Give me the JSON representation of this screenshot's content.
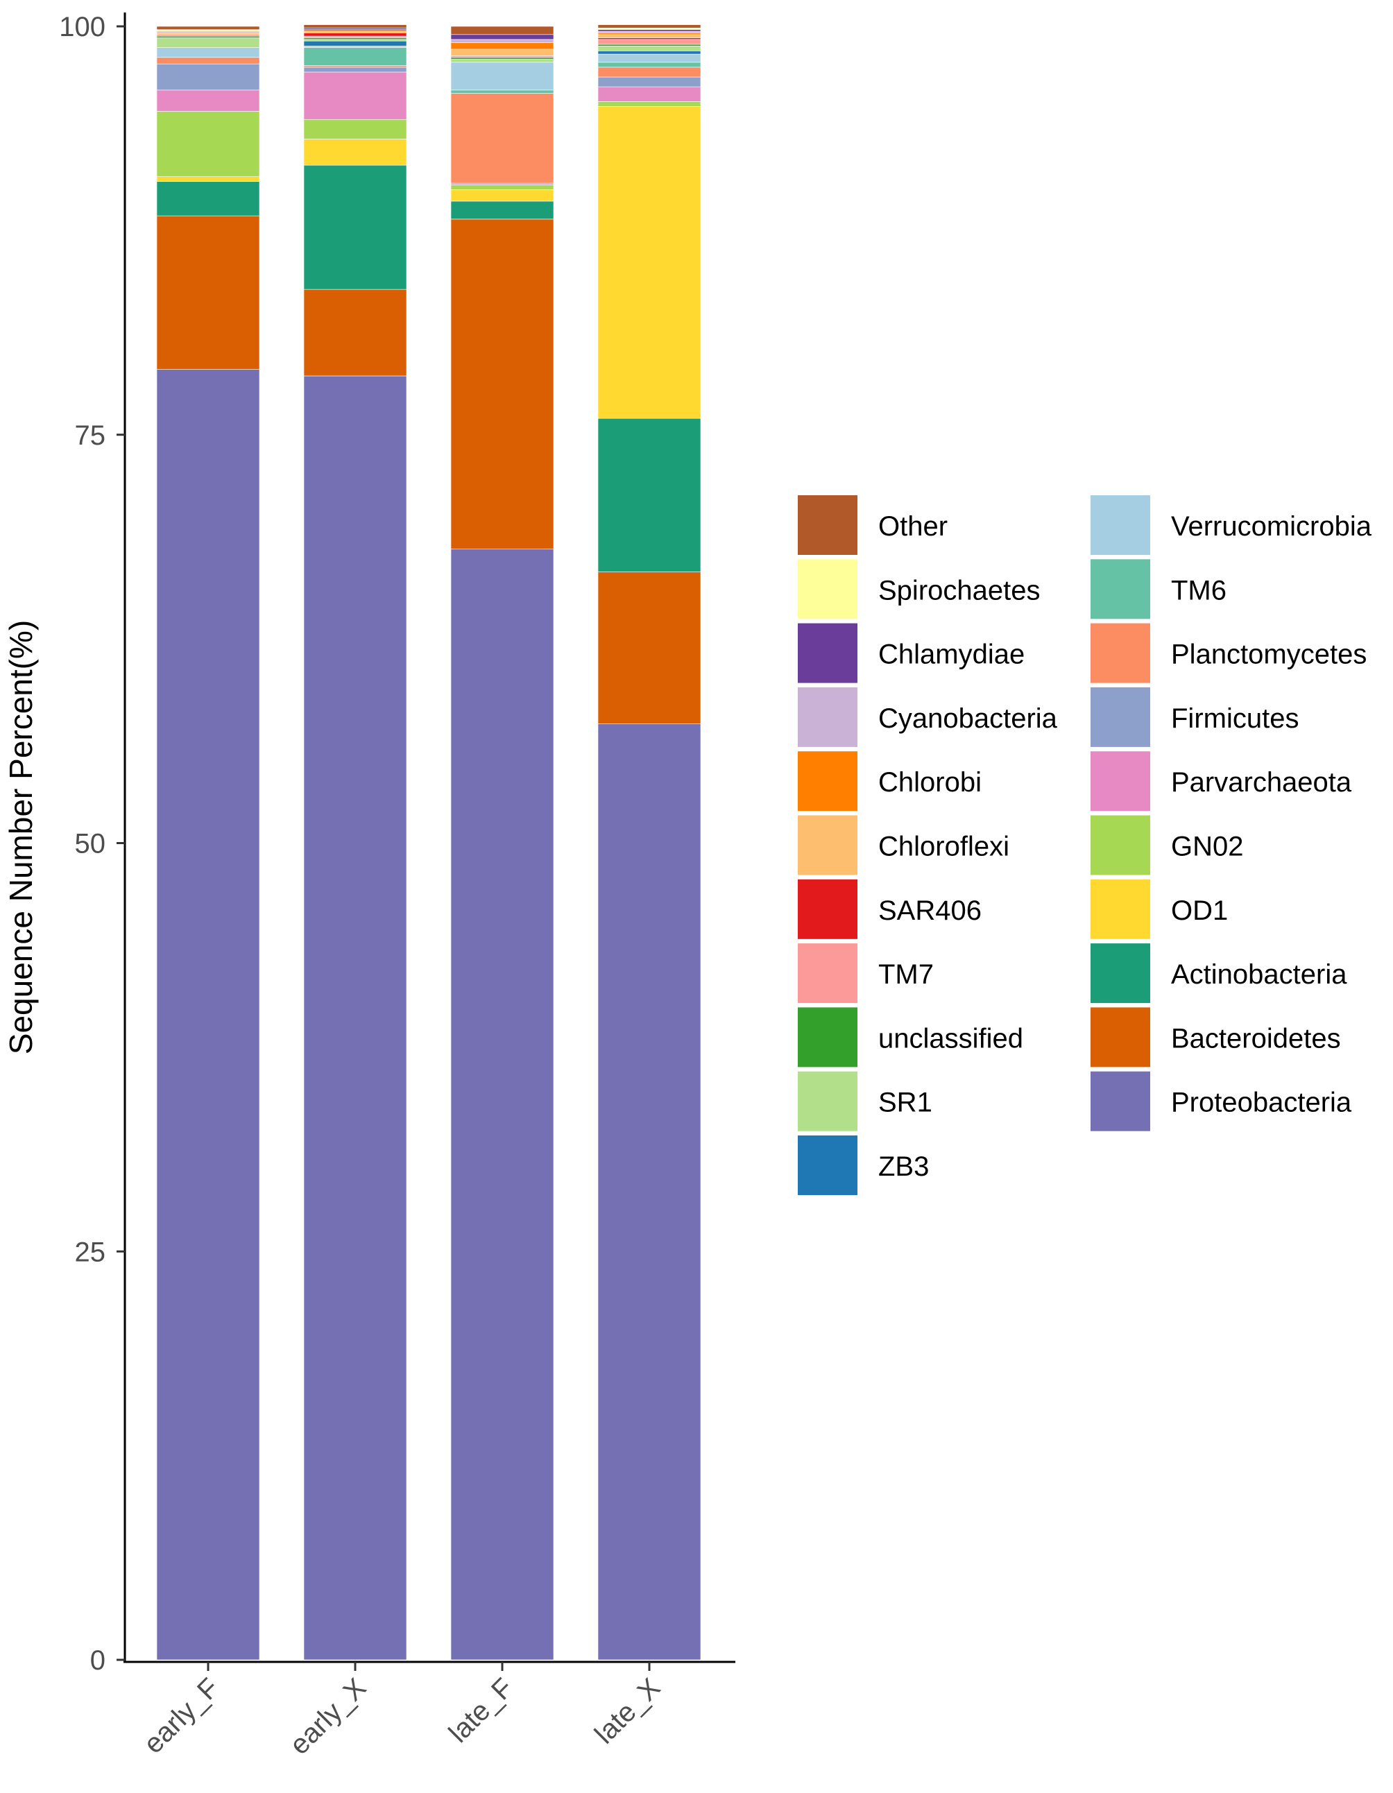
{
  "chart_data": {
    "type": "bar",
    "stacked": true,
    "title": "",
    "xlabel": "",
    "ylabel": "Sequence Number Percent(%)",
    "ylim": [
      0,
      100
    ],
    "yticks": [
      0,
      25,
      50,
      75,
      100
    ],
    "grid": false,
    "legend_position": "right",
    "categories": [
      "early_F",
      "early_X",
      "late_F",
      "late_X"
    ],
    "series": [
      {
        "name": "Proteobacteria",
        "color": "#7570B3",
        "values": [
          79.0,
          78.6,
          68.0,
          57.3
        ]
      },
      {
        "name": "Bacteroidetes",
        "color": "#D95F02",
        "values": [
          9.4,
          5.3,
          20.2,
          9.3
        ]
      },
      {
        "name": "Actinobacteria",
        "color": "#1B9E77",
        "values": [
          2.1,
          7.6,
          1.1,
          9.4
        ]
      },
      {
        "name": "OD1",
        "color": "#FFD92F",
        "values": [
          0.3,
          1.6,
          0.7,
          19.1
        ]
      },
      {
        "name": "GN02",
        "color": "#A6D854",
        "values": [
          4.0,
          1.2,
          0.3,
          0.3
        ]
      },
      {
        "name": "Parvarchaeota",
        "color": "#E78AC3",
        "values": [
          1.3,
          2.9,
          0.1,
          0.9
        ]
      },
      {
        "name": "Firmicutes",
        "color": "#8DA0CB",
        "values": [
          1.6,
          0.3,
          0.0,
          0.6
        ]
      },
      {
        "name": "Planctomycetes",
        "color": "#FC8D62",
        "values": [
          0.4,
          0.1,
          5.5,
          0.6
        ]
      },
      {
        "name": "TM6",
        "color": "#66C2A5",
        "values": [
          0.0,
          1.1,
          0.2,
          0.3
        ]
      },
      {
        "name": "Verrucomicrobia",
        "color": "#A6CEE3",
        "values": [
          0.6,
          0.1,
          1.7,
          0.5
        ]
      },
      {
        "name": "ZB3",
        "color": "#1F78B4",
        "values": [
          0.0,
          0.3,
          0.0,
          0.2
        ]
      },
      {
        "name": "SR1",
        "color": "#B2DF8A",
        "values": [
          0.6,
          0.1,
          0.2,
          0.3
        ]
      },
      {
        "name": "unclassified",
        "color": "#33A02C",
        "values": [
          0.1,
          0.1,
          0.1,
          0.1
        ]
      },
      {
        "name": "TM7",
        "color": "#FB9A99",
        "values": [
          0.1,
          0.1,
          0.1,
          0.3
        ]
      },
      {
        "name": "SAR406",
        "color": "#E31A1C",
        "values": [
          0.0,
          0.2,
          0.0,
          0.1
        ]
      },
      {
        "name": "Chloroflexi",
        "color": "#FDBF6F",
        "values": [
          0.1,
          0.1,
          0.4,
          0.2
        ]
      },
      {
        "name": "Chlorobi",
        "color": "#FF7F00",
        "values": [
          0.0,
          0.1,
          0.4,
          0.1
        ]
      },
      {
        "name": "Cyanobacteria",
        "color": "#CAB2D6",
        "values": [
          0.1,
          0.0,
          0.2,
          0.1
        ]
      },
      {
        "name": "Chlamydiae",
        "color": "#6A3D9A",
        "values": [
          0.0,
          0.1,
          0.3,
          0.1
        ]
      },
      {
        "name": "Spirochaetes",
        "color": "#FFFF99",
        "values": [
          0.1,
          0.0,
          0.0,
          0.1
        ]
      },
      {
        "name": "Other",
        "color": "#B15928",
        "values": [
          0.2,
          0.2,
          0.5,
          0.2
        ]
      }
    ],
    "legend_columns": [
      [
        "Other",
        "Spirochaetes",
        "Chlamydiae",
        "Cyanobacteria",
        "Chlorobi",
        "Chloroflexi",
        "SAR406",
        "TM7",
        "unclassified",
        "SR1",
        "ZB3"
      ],
      [
        "Verrucomicrobia",
        "TM6",
        "Planctomycetes",
        "Firmicutes",
        "Parvarchaeota",
        "GN02",
        "OD1",
        "Actinobacteria",
        "Bacteroidetes",
        "Proteobacteria"
      ]
    ]
  }
}
